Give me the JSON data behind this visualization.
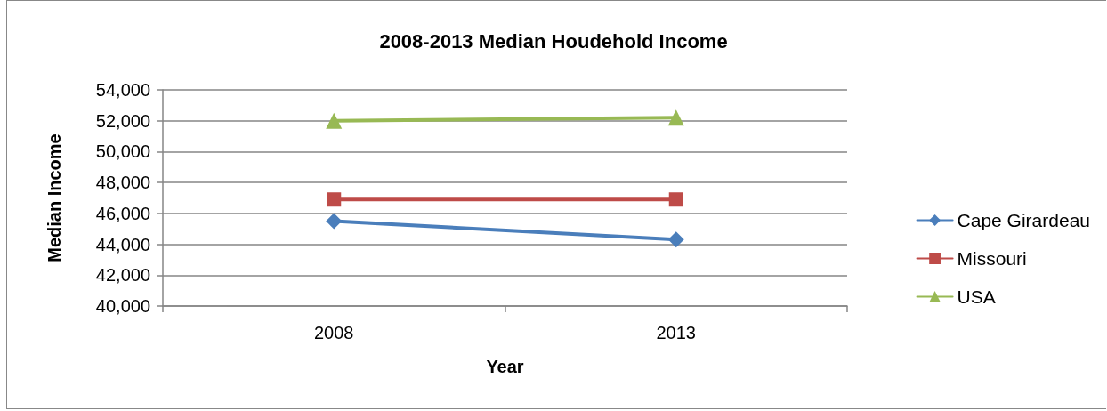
{
  "chart_data": {
    "type": "line",
    "title": "2008-2013 Median Houdehold Income",
    "xlabel": "Year",
    "ylabel": "Median Income",
    "categories": [
      "2008",
      "2013"
    ],
    "series": [
      {
        "name": "Cape Girardeau",
        "color": "#4a7ebb",
        "marker": "diamond",
        "values": [
          45500,
          44300
        ]
      },
      {
        "name": "Missouri",
        "color": "#be4b48",
        "marker": "square",
        "values": [
          46900,
          46900
        ]
      },
      {
        "name": "USA",
        "color": "#98b954",
        "marker": "triangle",
        "values": [
          52000,
          52200
        ]
      }
    ],
    "ylim": [
      40000,
      54000
    ],
    "yticks": [
      {
        "value": 40000,
        "label": "40,000"
      },
      {
        "value": 42000,
        "label": "42,000"
      },
      {
        "value": 44000,
        "label": "44,000"
      },
      {
        "value": 46000,
        "label": "46,000"
      },
      {
        "value": 48000,
        "label": "48,000"
      },
      {
        "value": 50000,
        "label": "50,000"
      },
      {
        "value": 52000,
        "label": "52,000"
      },
      {
        "value": 54000,
        "label": "54,000"
      }
    ],
    "grid": "y",
    "legend": "right",
    "line_style": "solid"
  }
}
